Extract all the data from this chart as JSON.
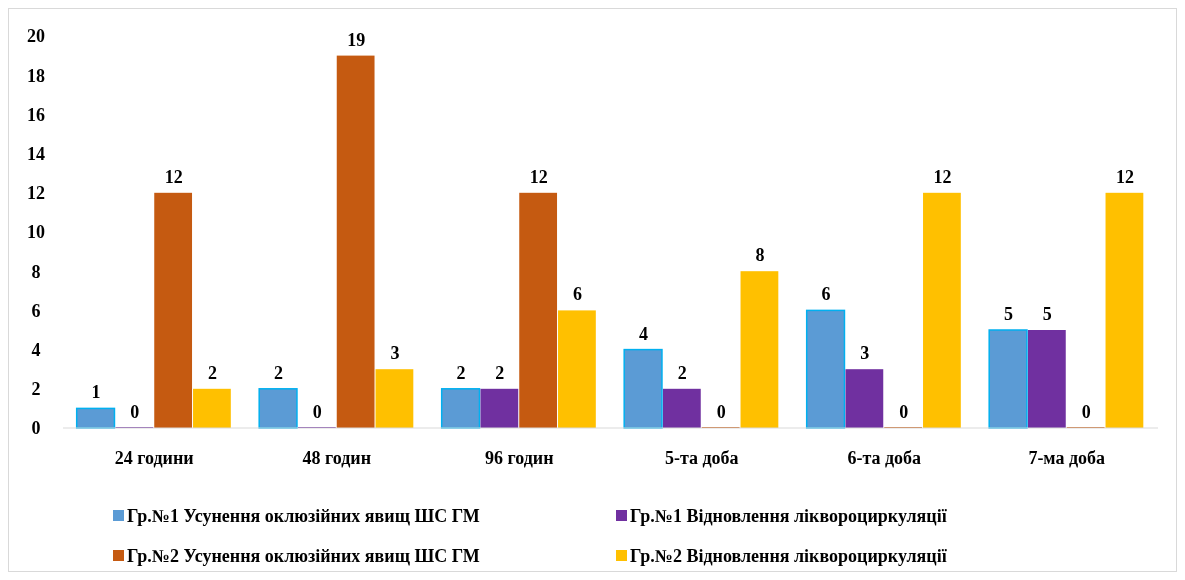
{
  "chart_data": {
    "type": "bar",
    "categories": [
      "24 години",
      "48 годин",
      "96 годин",
      "5-та доба",
      "6-та доба",
      "7-ма доба"
    ],
    "series": [
      {
        "name": "Гр.№1 Усунення оклюзійних явищ ШС ГМ",
        "color": "#5b9bd5",
        "values": [
          1,
          2,
          2,
          4,
          6,
          5
        ]
      },
      {
        "name": "Гр.№1 Відновлення ліквороциркуляції",
        "color": "#7030a0",
        "values": [
          0,
          0,
          2,
          2,
          3,
          5
        ]
      },
      {
        "name": "Гр.№2 Усунення оклюзійних явищ ШС ГМ",
        "color": "#c55a11",
        "values": [
          12,
          19,
          12,
          0,
          0,
          0
        ]
      },
      {
        "name": "Гр.№2 Відновлення ліквороциркуляції",
        "color": "#ffc000",
        "values": [
          2,
          3,
          6,
          8,
          12,
          12
        ]
      }
    ],
    "ylim": [
      0,
      20
    ],
    "yticks": [
      0,
      2,
      4,
      6,
      8,
      10,
      12,
      14,
      16,
      18,
      20
    ],
    "data_labels": true,
    "grid": false,
    "legend": "bottom"
  }
}
